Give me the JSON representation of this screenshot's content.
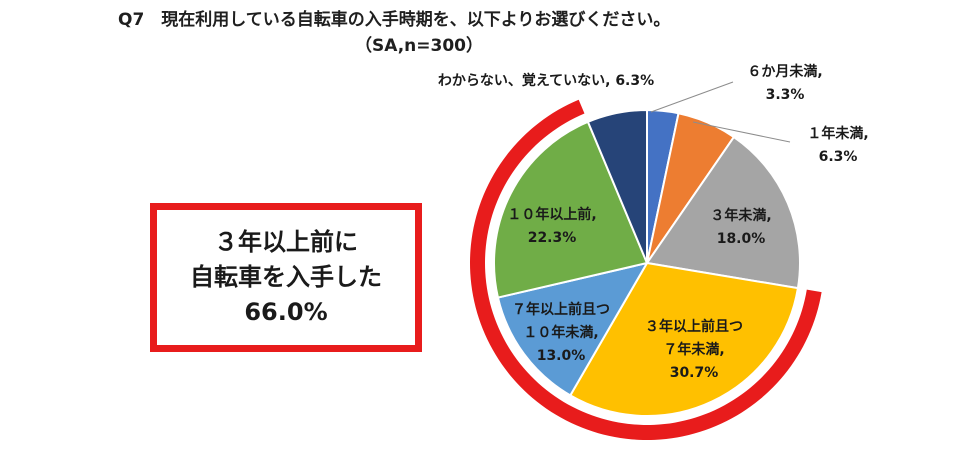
{
  "title": {
    "line1": "Q7　現在利用している自転車の入手時期を、以下よりお選びください。",
    "line2": "（SA,n=300）"
  },
  "callout": {
    "line1": "３年以上前に",
    "line2": "自転車を入手した",
    "line3": "66.0%"
  },
  "colors": {
    "ring": "#e81c1c",
    "callout_border": "#e81c1c"
  },
  "chart_data": {
    "type": "pie",
    "title": "Q7　現在利用している自転車の入手時期を、以下よりお選びください。（SA,n=300）",
    "unit": "%",
    "slices": [
      {
        "label": "６か月未満,",
        "value_label": "3.3%",
        "value": 3.3,
        "color": "#4472c4"
      },
      {
        "label": "１年未満,",
        "value_label": "6.3%",
        "value": 6.3,
        "color": "#ed7d31"
      },
      {
        "label": "３年未満,",
        "value_label": "18.0%",
        "value": 18.0,
        "color": "#a5a5a5"
      },
      {
        "label": "３年以上前且つ７年未満,",
        "label_lines": [
          "３年以上前且つ",
          "７年未満,"
        ],
        "value_label": "30.7%",
        "value": 30.7,
        "color": "#ffc000"
      },
      {
        "label": "７年以上前且つ１０年未満,",
        "label_lines": [
          "７年以上前且つ",
          "１０年未満,"
        ],
        "value_label": "13.0%",
        "value": 13.0,
        "color": "#5b9bd5"
      },
      {
        "label": "１０年以上前,",
        "value_label": "22.3%",
        "value": 22.3,
        "color": "#70ad47"
      },
      {
        "label": "わからない、覚えていない,",
        "value_label": "6.3%",
        "value": 6.3,
        "color": "#264478"
      }
    ],
    "highlight": {
      "label": "３年以上前に自転車を入手した",
      "value": 66.0
    }
  }
}
